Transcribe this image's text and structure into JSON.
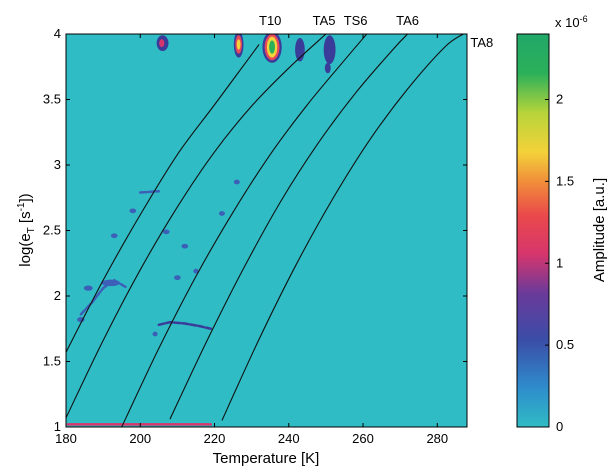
{
  "chart_data": {
    "type": "heatmap",
    "xlabel": "Temperature  [K]",
    "ylabel": "log(e",
    "ylabel_sub": "T",
    "ylabel_unit_open": " [s",
    "ylabel_unit_sup": "-1",
    "ylabel_unit_close": "])",
    "xlim": [
      180,
      288
    ],
    "ylim": [
      1,
      4
    ],
    "xticks": [
      180,
      200,
      220,
      240,
      260,
      280
    ],
    "yticks": [
      1,
      1.5,
      2,
      2.5,
      3,
      3.5,
      4
    ],
    "ytick_labels": [
      "1",
      "1.5",
      "2",
      "2.5",
      "3",
      "3.5",
      "4"
    ],
    "background_color": "#2fbcc4",
    "colorbar": {
      "label": "Amplitude [a.u.]",
      "multiplier": "x 10",
      "multiplier_exp": "-6",
      "range": [
        0,
        2.4e-06
      ],
      "ticks": [
        0,
        0.5,
        1,
        1.5,
        2
      ],
      "tick_labels": [
        "0",
        "0.5",
        "1",
        "1.5",
        "2"
      ]
    },
    "arrhenius_lines": [
      {
        "label": "T10",
        "points": [
          [
            180,
            1.57
          ],
          [
            190,
            2.12
          ],
          [
            200,
            2.62
          ],
          [
            210,
            3.08
          ],
          [
            220,
            3.46
          ],
          [
            232,
            3.92
          ]
        ]
      },
      {
        "label": "TA5",
        "points": [
          [
            180,
            1.07
          ],
          [
            190,
            1.66
          ],
          [
            200,
            2.2
          ],
          [
            210,
            2.68
          ],
          [
            220,
            3.1
          ],
          [
            230,
            3.45
          ],
          [
            240,
            3.74
          ],
          [
            250,
            4.0
          ]
        ]
      },
      {
        "label": "TS6",
        "points": [
          [
            195,
            1.0
          ],
          [
            205,
            1.6
          ],
          [
            215,
            2.15
          ],
          [
            225,
            2.64
          ],
          [
            235,
            3.08
          ],
          [
            245,
            3.46
          ],
          [
            255,
            3.8
          ],
          [
            261,
            4.0
          ]
        ]
      },
      {
        "label": "TA6",
        "points": [
          [
            208,
            1.06
          ],
          [
            218,
            1.66
          ],
          [
            228,
            2.22
          ],
          [
            238,
            2.73
          ],
          [
            248,
            3.17
          ],
          [
            258,
            3.55
          ],
          [
            268,
            3.88
          ],
          [
            272,
            4.0
          ]
        ]
      },
      {
        "label": "TA8",
        "points": [
          [
            222,
            1.05
          ],
          [
            232,
            1.67
          ],
          [
            242,
            2.24
          ],
          [
            252,
            2.75
          ],
          [
            262,
            3.2
          ],
          [
            272,
            3.58
          ],
          [
            282,
            3.9
          ],
          [
            287,
            4.0
          ]
        ]
      }
    ],
    "peak_labels": [
      {
        "text": "T10",
        "x": 235,
        "y": 4.07
      },
      {
        "text": "TA5",
        "x": 249.5,
        "y": 4.07
      },
      {
        "text": "TS6",
        "x": 258,
        "y": 4.07
      },
      {
        "text": "TA6",
        "x": 272,
        "y": 4.07
      },
      {
        "text": "TA8",
        "x": 292,
        "y": 3.9
      }
    ],
    "hotspots": [
      {
        "x": 206,
        "y": 3.93,
        "rx": 1.6,
        "ry": 0.06,
        "color": "#3a3c9a"
      },
      {
        "x": 205.8,
        "y": 3.93,
        "rx": 0.7,
        "ry": 0.03,
        "color": "#d6366c"
      },
      {
        "x": 226.5,
        "y": 3.92,
        "rx": 1.3,
        "ry": 0.1,
        "color": "#3a3c9a"
      },
      {
        "x": 226.5,
        "y": 3.92,
        "rx": 0.9,
        "ry": 0.07,
        "color": "#e8485a"
      },
      {
        "x": 226.5,
        "y": 3.92,
        "rx": 0.5,
        "ry": 0.04,
        "color": "#f4d23a"
      },
      {
        "x": 235.5,
        "y": 3.9,
        "rx": 2.6,
        "ry": 0.12,
        "color": "#3a3c9a"
      },
      {
        "x": 235.5,
        "y": 3.9,
        "rx": 2.0,
        "ry": 0.1,
        "color": "#e8485a"
      },
      {
        "x": 235.5,
        "y": 3.9,
        "rx": 1.4,
        "ry": 0.08,
        "color": "#f4d23a"
      },
      {
        "x": 235.5,
        "y": 3.9,
        "rx": 0.8,
        "ry": 0.05,
        "color": "#2bb05a"
      },
      {
        "x": 243,
        "y": 3.88,
        "rx": 1.3,
        "ry": 0.09,
        "color": "#3a3c9a"
      },
      {
        "x": 251,
        "y": 3.88,
        "rx": 1.6,
        "ry": 0.11,
        "color": "#3a3c9a"
      },
      {
        "x": 250.5,
        "y": 3.74,
        "rx": 0.8,
        "ry": 0.04,
        "color": "#3a3c9a"
      },
      {
        "x": 192,
        "y": 2.1,
        "rx": 2.5,
        "ry": 0.025,
        "color": "#3c5fb8"
      },
      {
        "x": 186,
        "y": 2.06,
        "rx": 1.2,
        "ry": 0.02,
        "color": "#3c5fb8"
      },
      {
        "x": 184,
        "y": 1.82,
        "rx": 1.0,
        "ry": 0.02,
        "color": "#3c5fb8"
      },
      {
        "x": 193,
        "y": 2.46,
        "rx": 0.9,
        "ry": 0.018,
        "color": "#3c5fb8"
      },
      {
        "x": 198,
        "y": 2.65,
        "rx": 0.9,
        "ry": 0.018,
        "color": "#3c5fb8"
      },
      {
        "x": 207,
        "y": 2.49,
        "rx": 0.9,
        "ry": 0.018,
        "color": "#3c5fb8"
      },
      {
        "x": 210,
        "y": 2.14,
        "rx": 0.9,
        "ry": 0.018,
        "color": "#3c5fb8"
      },
      {
        "x": 212,
        "y": 2.38,
        "rx": 0.9,
        "ry": 0.018,
        "color": "#3c5fb8"
      },
      {
        "x": 204,
        "y": 1.71,
        "rx": 0.7,
        "ry": 0.018,
        "color": "#3c5fb8"
      },
      {
        "x": 222,
        "y": 2.63,
        "rx": 0.8,
        "ry": 0.018,
        "color": "#3c5fb8"
      },
      {
        "x": 226,
        "y": 2.87,
        "rx": 0.8,
        "ry": 0.018,
        "color": "#3c5fb8"
      },
      {
        "x": 215,
        "y": 2.19,
        "rx": 0.7,
        "ry": 0.018,
        "color": "#3c5fb8"
      }
    ],
    "streaks": [
      {
        "points": [
          [
            205,
            1.78
          ],
          [
            208,
            1.8
          ],
          [
            212,
            1.79
          ],
          [
            216,
            1.77
          ],
          [
            219,
            1.75
          ]
        ],
        "color": "#3a3c9a"
      },
      {
        "points": [
          [
            184,
            1.86
          ],
          [
            187,
            1.95
          ],
          [
            190,
            2.06
          ],
          [
            193,
            2.12
          ],
          [
            196,
            2.07
          ]
        ],
        "color": "#3c5fb8"
      },
      {
        "points": [
          [
            200,
            2.79
          ],
          [
            205,
            2.8
          ]
        ],
        "color": "#3c5fb8"
      },
      {
        "points": [
          [
            180.5,
            1.02
          ],
          [
            219,
            1.02
          ]
        ],
        "color": "#d6366c"
      }
    ]
  }
}
